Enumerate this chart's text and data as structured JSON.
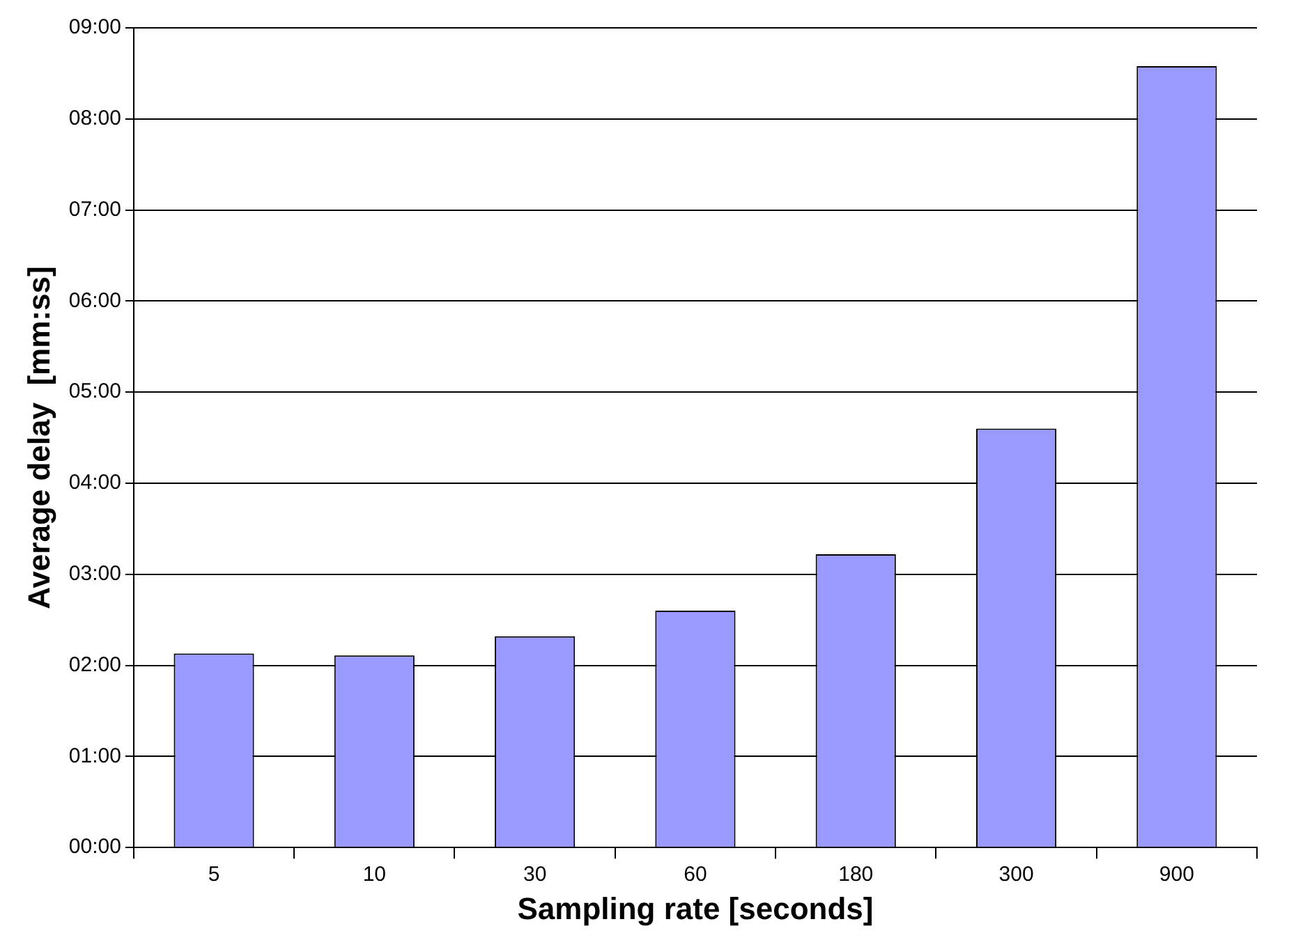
{
  "chart_data": {
    "type": "bar",
    "xlabel": "Sampling rate [seconds]",
    "ylabel": "Average delay  [mm:ss]",
    "categories": [
      "5",
      "10",
      "30",
      "60",
      "180",
      "300",
      "900"
    ],
    "values": [
      2.13,
      2.11,
      2.32,
      2.6,
      3.22,
      4.6,
      8.58
    ],
    "color": "#9999ff",
    "ylim": [
      0,
      9
    ],
    "yticks": [
      {
        "value": 0,
        "label": "00:00"
      },
      {
        "value": 1,
        "label": "01:00"
      },
      {
        "value": 2,
        "label": "02:00"
      },
      {
        "value": 3,
        "label": "03:00"
      },
      {
        "value": 4,
        "label": "04:00"
      },
      {
        "value": 5,
        "label": "05:00"
      },
      {
        "value": 6,
        "label": "06:00"
      },
      {
        "value": 7,
        "label": "07:00"
      },
      {
        "value": 8,
        "label": "08:00"
      },
      {
        "value": 9,
        "label": "09:00"
      }
    ],
    "grid": "y",
    "legend": false
  }
}
